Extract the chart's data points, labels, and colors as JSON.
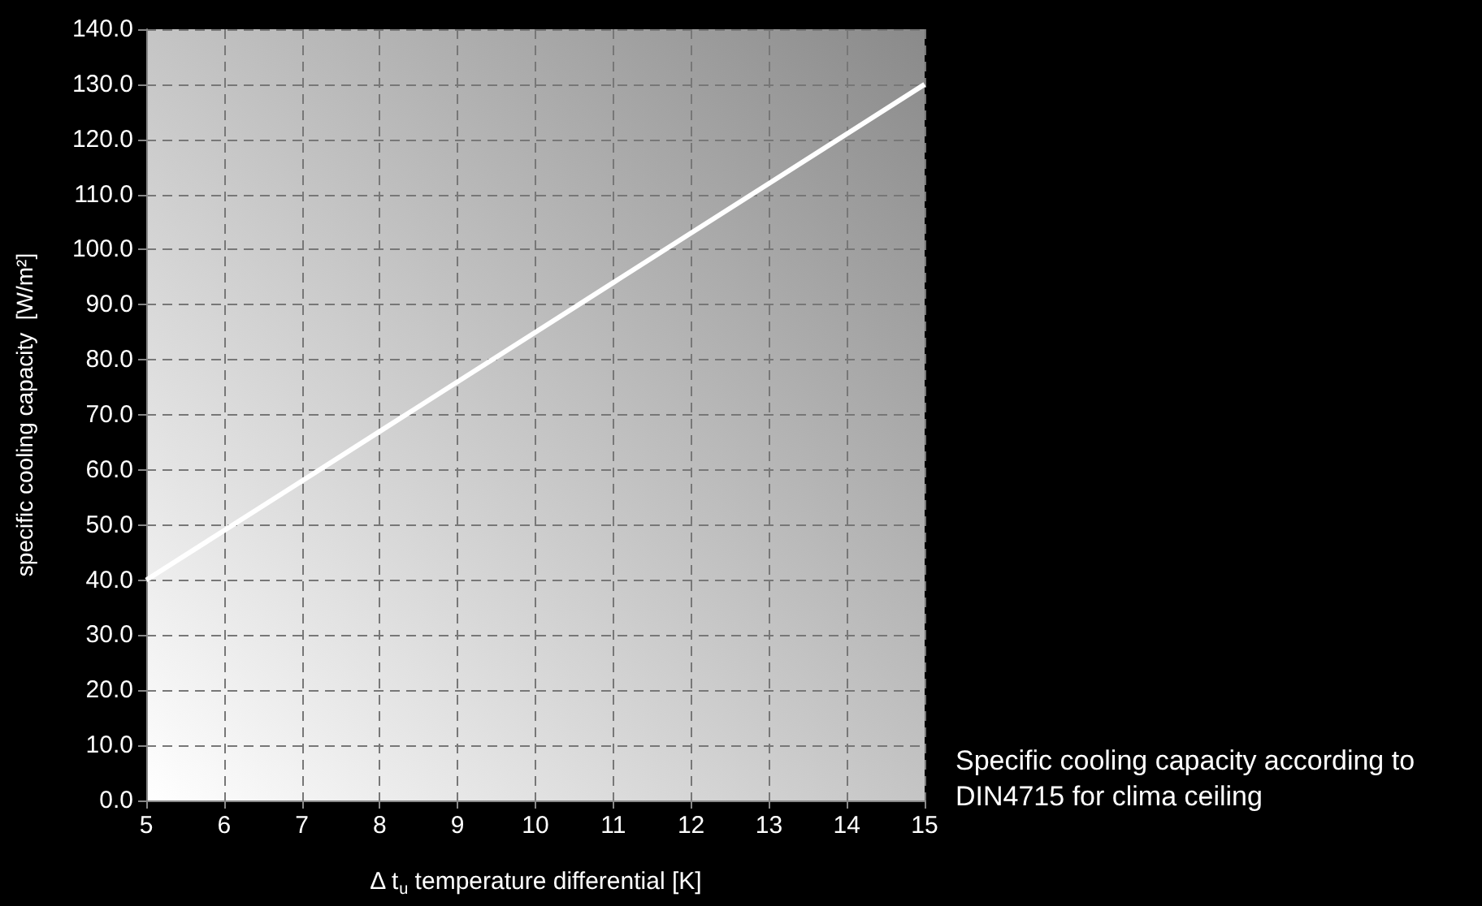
{
  "chart_data": {
    "type": "line",
    "xlabel": "Δ t$_{u}$ temperature differential [K]",
    "ylabel": "specific cooling capacity  [W/m²]",
    "annotations": [
      "Specific cooling capacity according to DIN4715 for clima ceiling"
    ],
    "x": [
      5,
      6,
      7,
      8,
      9,
      10,
      11,
      12,
      13,
      14,
      15
    ],
    "series": [
      {
        "color": "#ffffff",
        "values": [
          40,
          49,
          58,
          67,
          76,
          85,
          94,
          103,
          112,
          121,
          130
        ]
      }
    ],
    "xlim": [
      5,
      15
    ],
    "xticks": [
      5,
      6,
      7,
      8,
      9,
      10,
      11,
      12,
      13,
      14,
      15
    ],
    "ylim": [
      0,
      140
    ],
    "yticks": [
      {
        "value": 0,
        "label": "0.0"
      },
      {
        "value": 10,
        "label": "10.0"
      },
      {
        "value": 20,
        "label": "20.0"
      },
      {
        "value": 30,
        "label": "30.0"
      },
      {
        "value": 40,
        "label": "40.0"
      },
      {
        "value": 50,
        "label": "50.0"
      },
      {
        "value": 60,
        "label": "60.0"
      },
      {
        "value": 70,
        "label": "70.0"
      },
      {
        "value": 80,
        "label": "80.0"
      },
      {
        "value": 90,
        "label": "90.0"
      },
      {
        "value": 100,
        "label": "100.0"
      },
      {
        "value": 110,
        "label": "110.0"
      },
      {
        "value": 120,
        "label": "120.0"
      },
      {
        "value": 130,
        "label": "130.0"
      },
      {
        "value": 140,
        "label": "140.0"
      }
    ],
    "grid": true,
    "marker": "none",
    "line_style": "solid"
  }
}
